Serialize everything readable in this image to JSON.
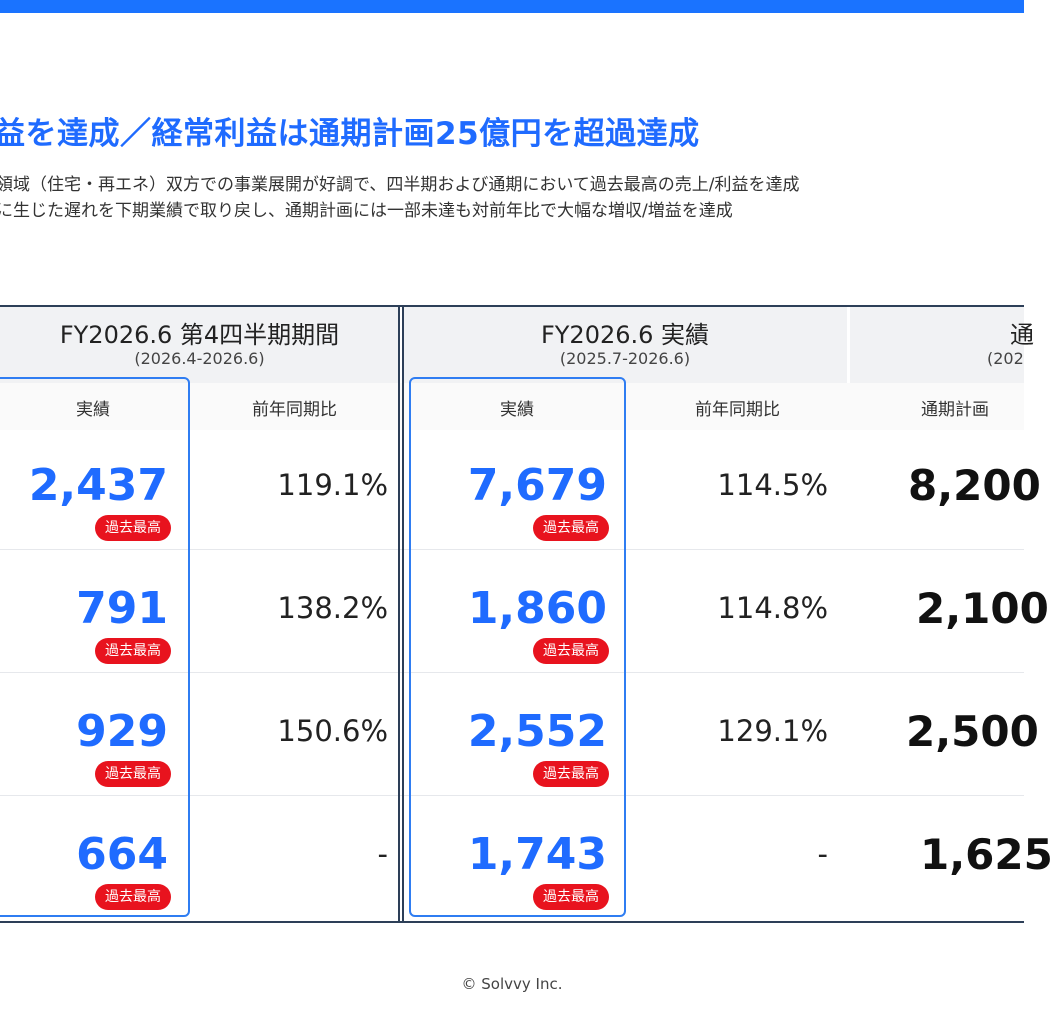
{
  "headline": "益を達成／経常利益は通期計画25億円を超過達成",
  "subtext": [
    "領域（住宅・再エネ）双方での事業展開が好調で、四半期および通期において過去最高の売上/利益を達成",
    "に生じた遅れを下期業績で取り戻し、通期計画には一部未達も対前年比で大幅な増収/増益を達成"
  ],
  "groups": [
    {
      "title": "FY2026.6 第4四半期期間",
      "range": "(2026.4-2026.6)"
    },
    {
      "title": "FY2026.6 実績",
      "range": "(2025.7-2026.6)"
    },
    {
      "title": "通",
      "range": "(202"
    }
  ],
  "col_labels": {
    "actual_q4": "実績",
    "yoy_q4": "前年同期比",
    "actual_fy": "実績",
    "yoy_fy": "前年同期比",
    "plan": "通期計画"
  },
  "badge_label": "過去最高",
  "rows": [
    {
      "q4_actual": "2,437",
      "q4_yoy": "119.1%",
      "fy_actual": "7,679",
      "fy_yoy": "114.5%",
      "plan": "8,200"
    },
    {
      "q4_actual": "791",
      "q4_yoy": "138.2%",
      "fy_actual": "1,860",
      "fy_yoy": "114.8%",
      "plan": "2,100"
    },
    {
      "q4_actual": "929",
      "q4_yoy": "150.6%",
      "fy_actual": "2,552",
      "fy_yoy": "129.1%",
      "plan": "2,500"
    },
    {
      "q4_actual": "664",
      "q4_yoy": "-",
      "fy_actual": "1,743",
      "fy_yoy": "-",
      "plan": "1,625"
    }
  ],
  "footer": "© Solvvy Inc.",
  "colors": {
    "accent": "#1f6bff",
    "badge": "#e8131e",
    "border": "#2d3f58"
  }
}
